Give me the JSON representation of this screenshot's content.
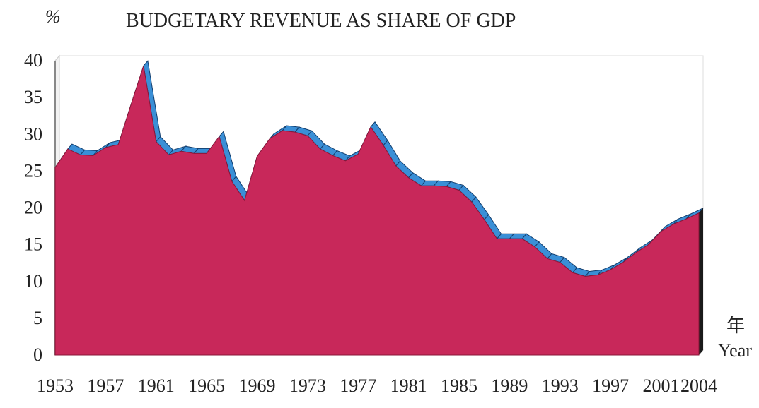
{
  "chart_data": {
    "type": "area",
    "title": "BUDGETARY REVENUE AS SHARE OF GDP",
    "ylabel": "%",
    "xlabel_zh": "年",
    "xlabel": "Year",
    "ylim": [
      0,
      40
    ],
    "y_ticks": [
      0,
      5,
      10,
      15,
      20,
      25,
      30,
      35,
      40
    ],
    "x_tick_labels": [
      "1953",
      "1957",
      "1961",
      "1965",
      "1969",
      "1973",
      "1977",
      "1981",
      "1985",
      "1989",
      "1993",
      "1997",
      "2001",
      "2004"
    ],
    "grid": false,
    "legend": "none",
    "colors": {
      "fill": "#c8285a",
      "fill_side": "#b01e4c",
      "edge": "#3a8fd6",
      "edge_dark": "#123e6e",
      "back_wall": "#ffffff",
      "floor": "#eeeeee"
    },
    "x": [
      1953,
      1954,
      1955,
      1956,
      1957,
      1958,
      1959,
      1960,
      1961,
      1962,
      1963,
      1964,
      1965,
      1966,
      1967,
      1968,
      1969,
      1970,
      1971,
      1972,
      1973,
      1974,
      1975,
      1976,
      1977,
      1978,
      1979,
      1980,
      1981,
      1982,
      1983,
      1984,
      1985,
      1986,
      1987,
      1988,
      1989,
      1990,
      1991,
      1992,
      1993,
      1994,
      1995,
      1996,
      1997,
      1998,
      1999,
      2000,
      2001,
      2002,
      2003,
      2004
    ],
    "values": [
      25.5,
      28.0,
      27.2,
      27.1,
      28.2,
      28.6,
      34.0,
      39.3,
      29.0,
      27.2,
      27.7,
      27.4,
      27.4,
      29.7,
      23.6,
      21.0,
      27.0,
      29.4,
      30.5,
      30.3,
      29.8,
      28.0,
      27.1,
      26.4,
      27.3,
      31.0,
      28.5,
      25.7,
      24.1,
      23.0,
      23.0,
      22.9,
      22.4,
      20.8,
      18.4,
      15.8,
      15.8,
      15.8,
      14.7,
      13.1,
      12.6,
      11.2,
      10.7,
      10.9,
      11.6,
      12.6,
      13.9,
      15.0,
      16.8,
      17.8,
      18.5,
      19.3
    ]
  }
}
